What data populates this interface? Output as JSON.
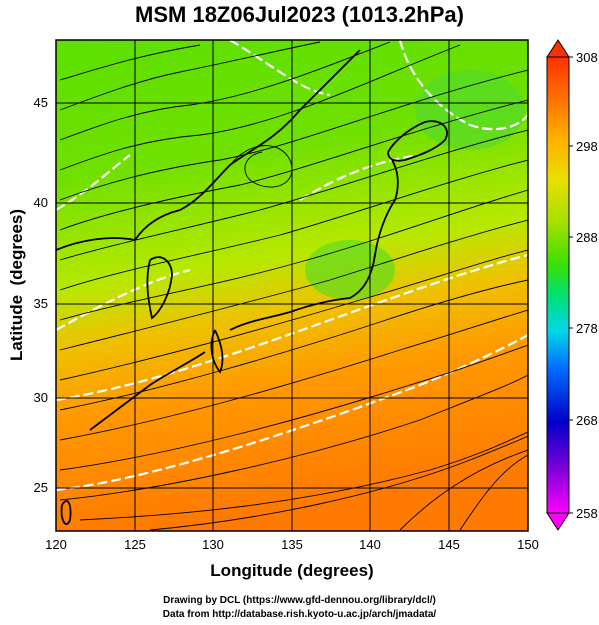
{
  "title": "MSM 18Z06Jul2023 (1013.2hPa)",
  "axes": {
    "xlabel": "Longitude (degrees)",
    "ylabel": "Latitude  (degrees)",
    "x_ticks": [
      "120",
      "125",
      "130",
      "135",
      "140",
      "145",
      "150"
    ],
    "y_ticks": [
      "25",
      "30",
      "35",
      "40",
      "45"
    ],
    "lon_range": [
      120,
      150
    ],
    "lat_range": [
      22.4,
      47.6
    ]
  },
  "colorbar": {
    "ticks": [
      "308",
      "298",
      "288",
      "278",
      "268",
      "258"
    ],
    "range": [
      258,
      308
    ],
    "colors": [
      "#ff00ff",
      "#7a00d8",
      "#0000c8",
      "#0070ff",
      "#00d8e8",
      "#00e070",
      "#40e000",
      "#c8e800",
      "#ffb000",
      "#ff7800",
      "#ff3000"
    ]
  },
  "credits": {
    "line1": "Drawing by DCL (https://www.gfd-dennou.org/library/dcl/)",
    "line2": "Data from http://database.rish.kyoto-u.ac.jp/arch/jmadata/"
  }
}
